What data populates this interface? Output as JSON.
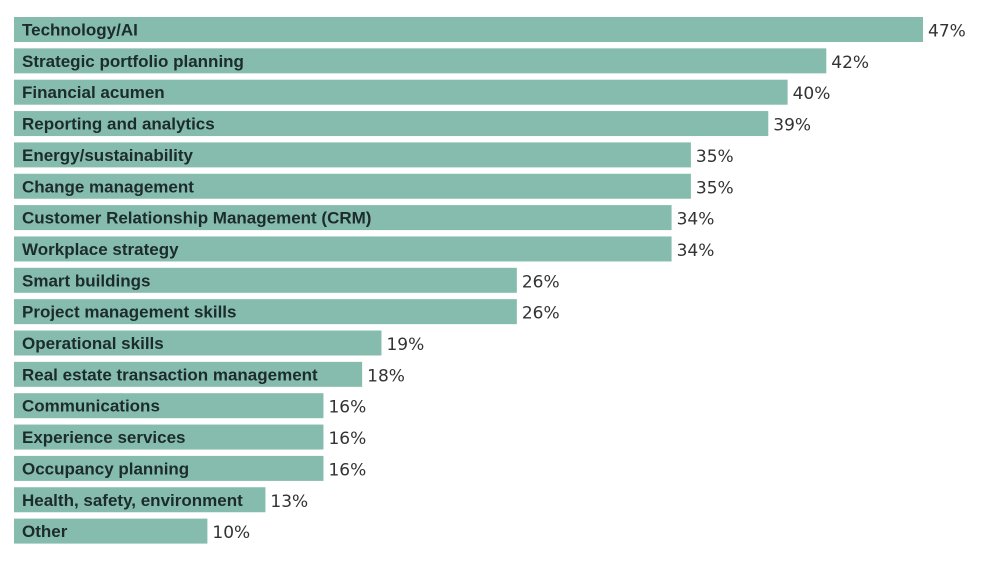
{
  "chart_data": {
    "type": "bar",
    "orientation": "horizontal",
    "title": "",
    "xlabel": "",
    "ylabel": "",
    "xlim": [
      0,
      47
    ],
    "unit": "%",
    "bar_color": "#86bcad",
    "label_color": "#1c2b2b",
    "value_color": "#333333",
    "categories": [
      "Technology/AI",
      "Strategic portfolio planning",
      "Financial acumen",
      "Reporting and analytics",
      "Energy/sustainability",
      "Change management",
      "Customer Relationship Management (CRM)",
      "Workplace strategy",
      "Smart buildings",
      "Project management skills",
      "Operational skills",
      "Real estate transaction management",
      "Communications",
      "Experience services",
      "Occupancy planning",
      "Health, safety, environment",
      "Other"
    ],
    "values": [
      47,
      42,
      40,
      39,
      35,
      35,
      34,
      34,
      26,
      26,
      19,
      18,
      16,
      16,
      16,
      13,
      10
    ],
    "value_labels": [
      "47%",
      "42%",
      "40%",
      "39%",
      "35%",
      "35%",
      "34%",
      "34%",
      "26%",
      "26%",
      "19%",
      "18%",
      "16%",
      "16%",
      "16%",
      "13%",
      "10%"
    ]
  }
}
